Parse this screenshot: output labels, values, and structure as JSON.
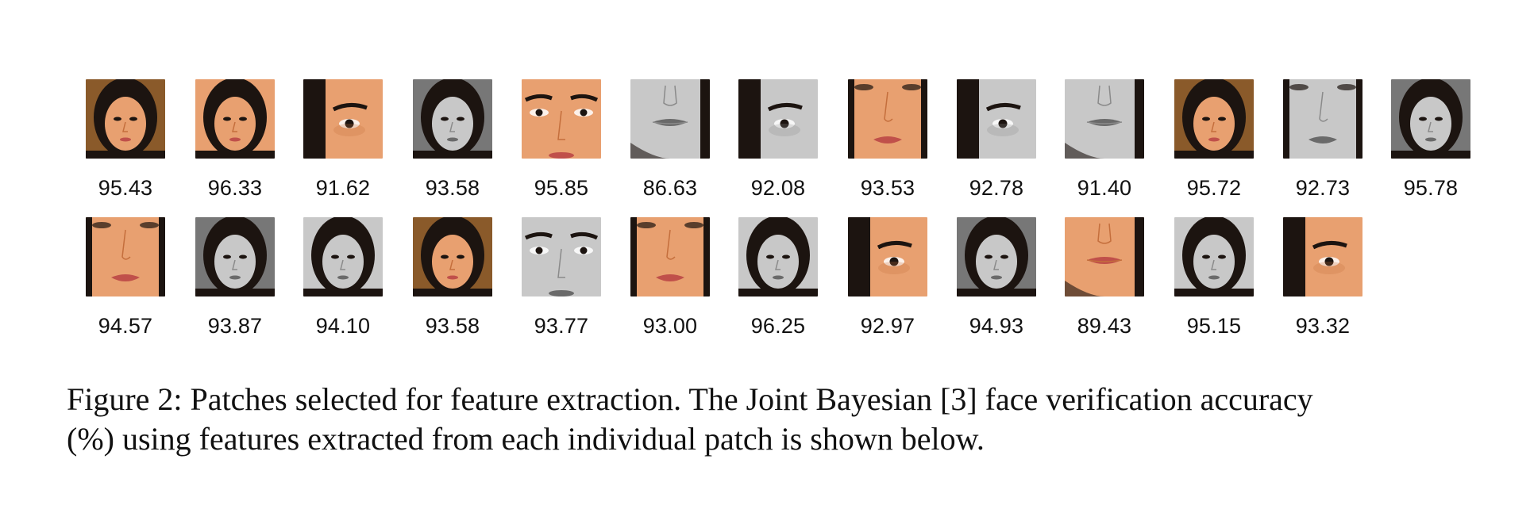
{
  "figure": {
    "rows": [
      {
        "patches": [
          {
            "score": "95.43",
            "tone": "color",
            "crop": "full"
          },
          {
            "score": "96.33",
            "tone": "color",
            "crop": "face"
          },
          {
            "score": "91.62",
            "tone": "color",
            "crop": "eye"
          },
          {
            "score": "93.58",
            "tone": "gray",
            "crop": "full"
          },
          {
            "score": "95.85",
            "tone": "color",
            "crop": "eyes-close"
          },
          {
            "score": "86.63",
            "tone": "gray",
            "crop": "mouth"
          },
          {
            "score": "92.08",
            "tone": "gray",
            "crop": "eye"
          },
          {
            "score": "93.53",
            "tone": "color",
            "crop": "nose-mouth"
          },
          {
            "score": "92.78",
            "tone": "gray",
            "crop": "eye"
          },
          {
            "score": "91.40",
            "tone": "gray",
            "crop": "mouth"
          },
          {
            "score": "95.72",
            "tone": "color",
            "crop": "full"
          },
          {
            "score": "92.73",
            "tone": "gray",
            "crop": "nose-mouth"
          },
          {
            "score": "95.78",
            "tone": "gray",
            "crop": "full"
          }
        ]
      },
      {
        "patches": [
          {
            "score": "94.57",
            "tone": "color",
            "crop": "nose-mouth"
          },
          {
            "score": "93.87",
            "tone": "gray",
            "crop": "full"
          },
          {
            "score": "94.10",
            "tone": "gray",
            "crop": "face"
          },
          {
            "score": "93.58",
            "tone": "color",
            "crop": "full"
          },
          {
            "score": "93.77",
            "tone": "gray",
            "crop": "eyes-close"
          },
          {
            "score": "93.00",
            "tone": "color",
            "crop": "nose-mouth"
          },
          {
            "score": "96.25",
            "tone": "gray",
            "crop": "face"
          },
          {
            "score": "92.97",
            "tone": "color",
            "crop": "eye"
          },
          {
            "score": "94.93",
            "tone": "gray",
            "crop": "full"
          },
          {
            "score": "89.43",
            "tone": "color",
            "crop": "mouth"
          },
          {
            "score": "95.15",
            "tone": "gray",
            "crop": "face"
          },
          {
            "score": "93.32",
            "tone": "color",
            "crop": "eye"
          }
        ]
      }
    ],
    "caption": {
      "line1": "Figure 2: Patches selected for feature extraction. The Joint Bayesian [3] face verification accuracy",
      "line2": "(%) using features extracted from each individual patch is shown below."
    },
    "colors": {
      "skin_color": "#e8a070",
      "skin_color_dark": "#c46e3c",
      "skin_gray": "#c8c8c8",
      "skin_gray_dark": "#8a8a8a",
      "hair": "#1c1410",
      "lips_color": "#c0504a",
      "lips_gray": "#6a6a6a",
      "bg_color": "#8a5a2a",
      "bg_gray": "#777777"
    }
  }
}
